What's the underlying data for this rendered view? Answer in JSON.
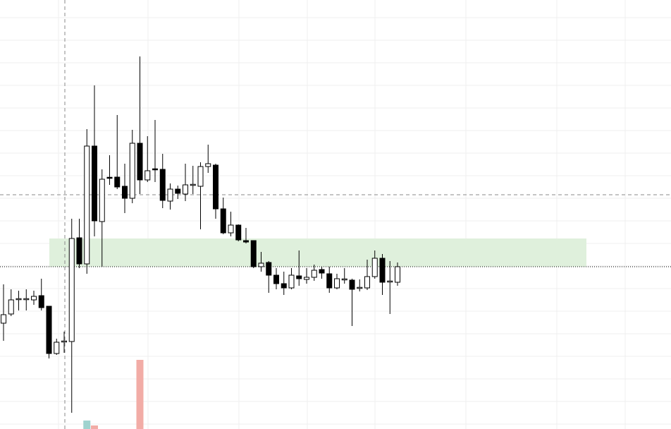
{
  "chart_data": {
    "type": "candlestick",
    "ylim": [
      0,
      608
    ],
    "open": [
      150,
      163,
      183,
      184,
      183,
      189,
      174,
      107,
      124,
      124,
      271,
      234,
      401,
      294,
      356,
      357,
      344,
      327,
      405,
      353,
      368,
      368,
      323,
      340,
      333,
      345,
      344,
      372,
      374,
      312,
      278,
      289,
      267,
      267,
      230,
      236,
      218,
      206,
      200,
      217,
      212,
      215,
      226,
      220,
      200,
      212,
      211,
      200,
      200,
      216,
      242,
      209,
      208
    ],
    "high": [
      205,
      198,
      196,
      198,
      196,
      213,
      174,
      128,
      138,
      298,
      298,
      425,
      487,
      368,
      388,
      445,
      376,
      424,
      528,
      415,
      438,
      390,
      348,
      345,
      376,
      373,
      378,
      403,
      376,
      328,
      308,
      290,
      285,
      267,
      251,
      238,
      228,
      223,
      228,
      253,
      228,
      233,
      230,
      230,
      220,
      228,
      213,
      212,
      240,
      253,
      248,
      238,
      236
    ],
    "low": [
      125,
      160,
      168,
      168,
      176,
      168,
      100,
      105,
      108,
      23,
      228,
      220,
      273,
      230,
      346,
      340,
      306,
      320,
      333,
      350,
      350,
      313,
      311,
      326,
      323,
      333,
      283,
      363,
      298,
      276,
      273,
      266,
      263,
      228,
      223,
      193,
      198,
      190,
      198,
      203,
      206,
      210,
      213,
      193,
      198,
      206,
      146,
      195,
      197,
      213,
      190,
      163,
      203
    ],
    "close": [
      162,
      183,
      184,
      184,
      188,
      172,
      107,
      123,
      124,
      270,
      234,
      401,
      295,
      354,
      355,
      343,
      327,
      405,
      353,
      366,
      367,
      324,
      340,
      334,
      346,
      346,
      372,
      376,
      312,
      278,
      289,
      268,
      265,
      230,
      235,
      218,
      206,
      200,
      218,
      213,
      215,
      225,
      221,
      200,
      213,
      212,
      198,
      200,
      216,
      242,
      208,
      209,
      230
    ],
    "volume": [
      null,
      null,
      null,
      null,
      null,
      null,
      null,
      null,
      null,
      null,
      null,
      12,
      5,
      null,
      null,
      null,
      null,
      null,
      98,
      null,
      null,
      null,
      null,
      null,
      null,
      null,
      null,
      null,
      null,
      null,
      null,
      null,
      null,
      null,
      null,
      null,
      null,
      null,
      null,
      null,
      null,
      null,
      null,
      null,
      null,
      null,
      null,
      null,
      null,
      null,
      null,
      null,
      null
    ],
    "up_color": "#ffffff",
    "down_color": "#000000",
    "volume_up_color": "#9fd3cf",
    "volume_down_color": "#f2aca6",
    "grid": true
  }
}
